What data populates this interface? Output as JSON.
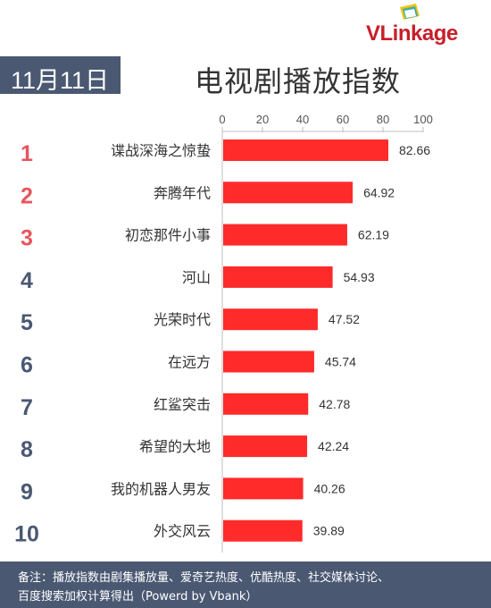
{
  "brand": {
    "name_v": "V",
    "name_rest": "Linkage"
  },
  "date_label": "11月11日",
  "title": "电视剧播放指数",
  "colors": {
    "bar": "#ff2a2a",
    "rank_top": "#e8555d",
    "rank_other": "#4a5872",
    "header_bg": "#4a5872"
  },
  "chart_data": {
    "type": "bar",
    "orientation": "horizontal",
    "title": "电视剧播放指数",
    "xlim": [
      0,
      100
    ],
    "x_ticks": [
      "0",
      "20",
      "40",
      "60",
      "80",
      "100"
    ],
    "ranks": [
      "1",
      "2",
      "3",
      "4",
      "5",
      "6",
      "7",
      "8",
      "9",
      "10"
    ],
    "categories": [
      "谍战深海之惊蛰",
      "奔腾年代",
      "初恋那件小事",
      "河山",
      "光荣时代",
      "在远方",
      "红鲨突击",
      "希望的大地",
      "我的机器人男友",
      "外交风云"
    ],
    "values": [
      82.66,
      64.92,
      62.19,
      54.93,
      47.52,
      45.74,
      42.78,
      42.24,
      40.26,
      39.89
    ],
    "value_labels": [
      "82.66",
      "64.92",
      "62.19",
      "54.93",
      "47.52",
      "45.74",
      "42.78",
      "42.24",
      "40.26",
      "39.89"
    ]
  },
  "footer": {
    "line1": "备注：播放指数由剧集播放量、爱奇艺热度、优酷热度、社交媒体讨论、",
    "line2": "百度搜索加权计算得出（Powerd by Vbank）"
  }
}
